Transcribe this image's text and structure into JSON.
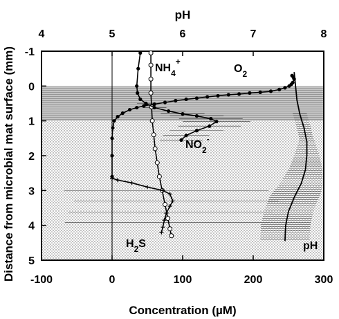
{
  "chart_data": {
    "type": "line",
    "x_bottom": {
      "label": "Concentration (µM)",
      "range": [
        -100,
        300
      ],
      "ticks": [
        -100,
        0,
        100,
        200,
        300
      ]
    },
    "x_top": {
      "label": "pH",
      "range": [
        4,
        8
      ],
      "ticks": [
        4,
        5,
        6,
        7,
        8
      ]
    },
    "y": {
      "label": "Distance from microbial mat surface (mm)",
      "range": [
        -1,
        5
      ],
      "inverted": true,
      "ticks": [
        -1,
        0,
        1,
        2,
        3,
        4,
        5
      ]
    },
    "zones": [
      {
        "name": "upper-mat-layer",
        "y_range": [
          0,
          1
        ],
        "fill": "#b5b5b5"
      },
      {
        "name": "lower-mat-layer",
        "y_range": [
          1,
          5
        ],
        "fill": "#dcdcdc"
      }
    ],
    "reference_line_x": 0,
    "series": [
      {
        "key": "o2",
        "label_main": "O",
        "label_sub": "2",
        "label_sup": "",
        "axis": "bottom",
        "marker": "filled-circle",
        "points": [
          [
            255,
            -0.3
          ],
          [
            257,
            -0.25
          ],
          [
            258,
            -0.2
          ],
          [
            256,
            -0.1
          ],
          [
            254,
            -0.05
          ],
          [
            251,
            0
          ],
          [
            245,
            0.05
          ],
          [
            237,
            0.1
          ],
          [
            225,
            0.15
          ],
          [
            210,
            0.18
          ],
          [
            195,
            0.2
          ],
          [
            180,
            0.23
          ],
          [
            165,
            0.25
          ],
          [
            150,
            0.28
          ],
          [
            135,
            0.31
          ],
          [
            120,
            0.35
          ],
          [
            105,
            0.38
          ],
          [
            90,
            0.42
          ],
          [
            75,
            0.47
          ],
          [
            60,
            0.52
          ],
          [
            45,
            0.57
          ],
          [
            35,
            0.62
          ],
          [
            25,
            0.68
          ],
          [
            15,
            0.78
          ],
          [
            8,
            0.88
          ],
          [
            3,
            1.0
          ],
          [
            1,
            1.2
          ],
          [
            0,
            1.5
          ],
          [
            0,
            2.0
          ],
          [
            0,
            2.6
          ]
        ]
      },
      {
        "key": "nh4",
        "label_main": "NH",
        "label_sub": "4",
        "label_sup": "+",
        "axis": "bottom",
        "marker": "open-circle",
        "points": [
          [
            55,
            -0.95
          ],
          [
            55,
            -0.6
          ],
          [
            55,
            -0.2
          ],
          [
            55,
            0.2
          ],
          [
            56,
            0.6
          ],
          [
            57,
            1.0
          ],
          [
            59,
            1.4
          ],
          [
            61,
            1.8
          ],
          [
            64,
            2.2
          ],
          [
            67,
            2.6
          ],
          [
            71,
            3.0
          ],
          [
            75,
            3.4
          ],
          [
            79,
            3.8
          ],
          [
            82,
            4.1
          ],
          [
            84,
            4.3
          ]
        ]
      },
      {
        "key": "no2",
        "label_main": "NO",
        "label_sub": "2",
        "label_sup": "-",
        "axis": "bottom",
        "marker": "filled-circle",
        "points": [
          [
            40,
            -0.95
          ],
          [
            37,
            -0.5
          ],
          [
            35,
            0
          ],
          [
            36,
            0.2
          ],
          [
            40,
            0.38
          ],
          [
            48,
            0.5
          ],
          [
            60,
            0.62
          ],
          [
            80,
            0.72
          ],
          [
            100,
            0.8
          ],
          [
            120,
            0.86
          ],
          [
            140,
            0.94
          ],
          [
            148,
            1.02
          ],
          [
            138,
            1.15
          ],
          [
            120,
            1.28
          ],
          [
            105,
            1.42
          ],
          [
            98,
            1.55
          ]
        ]
      },
      {
        "key": "h2s",
        "label_main": "H",
        "label_sub": "2",
        "label_sup": "S",
        "axis": "bottom",
        "marker": "cross",
        "points": [
          [
            0,
            2.65
          ],
          [
            8,
            2.7
          ],
          [
            28,
            2.78
          ],
          [
            50,
            2.9
          ],
          [
            72,
            3.0
          ],
          [
            82,
            3.1
          ],
          [
            86,
            3.3
          ],
          [
            82,
            3.45
          ],
          [
            77,
            3.65
          ],
          [
            74,
            3.85
          ],
          [
            72,
            4.05
          ],
          [
            70,
            4.2
          ]
        ]
      },
      {
        "key": "ph",
        "label_main": "pH",
        "label_sub": "",
        "label_sup": "",
        "axis": "top",
        "marker": "none",
        "points": [
          [
            7.58,
            -0.4
          ],
          [
            7.6,
            0
          ],
          [
            7.62,
            0.4
          ],
          [
            7.66,
            0.8
          ],
          [
            7.72,
            1.2
          ],
          [
            7.76,
            1.6
          ],
          [
            7.76,
            2.0
          ],
          [
            7.74,
            2.4
          ],
          [
            7.68,
            2.8
          ],
          [
            7.58,
            3.2
          ],
          [
            7.5,
            3.6
          ],
          [
            7.46,
            4.0
          ],
          [
            7.45,
            4.45
          ]
        ]
      }
    ]
  }
}
